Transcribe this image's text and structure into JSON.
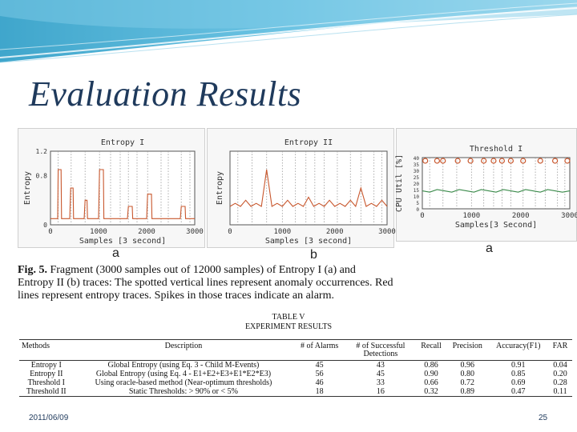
{
  "slide": {
    "title": "Evaluation Results",
    "date": "2011/06/09",
    "page_number": "25"
  },
  "colors": {
    "title": "#1f3a5c",
    "banner_dark": "#1b8bb5",
    "banner_light": "#bfe5f3",
    "entropy_trace": "#c8572d",
    "cpu_trace": "#3a8a4a",
    "alarm_marker": "#c8572d"
  },
  "figure": {
    "sub_labels": [
      "a",
      "b",
      "a"
    ],
    "caption": {
      "prefix": "Fig. 5.",
      "text": "Fragment (3000 samples out of 12000 samples) of Entropy I (a) and Entropy II (b) traces: The spotted vertical lines represent anomaly occurrences. Red lines represent entropy traces. Spikes in those traces indicate an alarm."
    }
  },
  "chart_data": [
    {
      "type": "line",
      "title": "Entropy I",
      "xlabel": "Samples [3 second]",
      "ylabel": "Entropy",
      "xlim": [
        0,
        3000
      ],
      "ylim": [
        0,
        1.2
      ],
      "x_ticks": [
        "0",
        "1000",
        "2000",
        "3000"
      ],
      "y_ticks": [
        "0",
        "0.8",
        "1.2"
      ],
      "series": [
        {
          "x": [
            0,
            150,
            160,
            220,
            230,
            400,
            420,
            470,
            480,
            700,
            720,
            760,
            770,
            1000,
            1020,
            1100,
            1110,
            1600,
            1620,
            1700,
            1710,
            2000,
            2020,
            2100,
            2110,
            2700,
            2720,
            2800,
            2810,
            3000
          ],
          "y": [
            0.1,
            0.1,
            0.9,
            0.9,
            0.1,
            0.1,
            0.6,
            0.6,
            0.1,
            0.1,
            0.4,
            0.4,
            0.1,
            0.1,
            0.9,
            0.9,
            0.1,
            0.1,
            0.3,
            0.3,
            0.1,
            0.1,
            0.5,
            0.5,
            0.1,
            0.1,
            0.3,
            0.3,
            0.1,
            0.1
          ]
        }
      ],
      "anomaly_x": [
        160,
        430,
        720,
        1020,
        1250,
        1450,
        1620,
        1800,
        2020,
        2300,
        2450,
        2720,
        2900
      ]
    },
    {
      "type": "line",
      "title": "Entropy II",
      "xlabel": "Samples [3 second]",
      "ylabel": "Entropy",
      "xlim": [
        0,
        3000
      ],
      "ylim": [
        0,
        1.2
      ],
      "x_ticks": [
        "0",
        "1000",
        "2000",
        "3000"
      ],
      "y_ticks": [],
      "series": [
        {
          "x": [
            0,
            100,
            200,
            300,
            400,
            500,
            600,
            700,
            800,
            900,
            1000,
            1100,
            1200,
            1300,
            1400,
            1500,
            1600,
            1700,
            1800,
            1900,
            2000,
            2100,
            2200,
            2300,
            2400,
            2500,
            2600,
            2700,
            2800,
            2900,
            3000
          ],
          "y": [
            0.3,
            0.35,
            0.3,
            0.4,
            0.3,
            0.35,
            0.3,
            0.9,
            0.3,
            0.35,
            0.3,
            0.4,
            0.3,
            0.35,
            0.3,
            0.45,
            0.3,
            0.35,
            0.3,
            0.4,
            0.3,
            0.35,
            0.3,
            0.4,
            0.3,
            0.6,
            0.3,
            0.35,
            0.3,
            0.4,
            0.3
          ]
        }
      ],
      "anomaly_x": [
        150,
        420,
        700,
        1000,
        1250,
        1450,
        1620,
        1800,
        2050,
        2300,
        2500,
        2750,
        2900
      ]
    },
    {
      "type": "line",
      "title": "Threshold I",
      "xlabel": "Samples[3 Second]",
      "ylabel": "CPU Util [%]",
      "xlim": [
        0,
        3000
      ],
      "ylim": [
        0,
        40
      ],
      "x_ticks": [
        "0",
        "1000",
        "2000",
        "3000"
      ],
      "y_ticks": [
        "0",
        "5",
        "10",
        "15",
        "20",
        "25",
        "30",
        "35",
        "40"
      ],
      "series": [
        {
          "x": [
            0,
            150,
            300,
            450,
            600,
            750,
            900,
            1050,
            1200,
            1350,
            1500,
            1650,
            1800,
            1950,
            2100,
            2250,
            2400,
            2550,
            2700,
            2850,
            3000
          ],
          "y": [
            14,
            13,
            15,
            14,
            13,
            15,
            14,
            13,
            15,
            14,
            13,
            15,
            14,
            13,
            15,
            14,
            13,
            15,
            14,
            13,
            14
          ]
        }
      ],
      "alarm_x": [
        60,
        300,
        420,
        720,
        980,
        1250,
        1450,
        1620,
        1800,
        2050,
        2400,
        2700,
        2950
      ],
      "anomaly_x": [
        150,
        420,
        700,
        1000,
        1250,
        1450,
        1620,
        1800,
        2050,
        2300,
        2500,
        2750,
        2900
      ]
    }
  ],
  "table": {
    "title_line1": "TABLE V",
    "title_line2": "EXPERIMENT RESULTS",
    "headers": [
      "Methods",
      "Description",
      "# of Alarms",
      "# of Successful Detections",
      "Recall",
      "Precision",
      "Accuracy(F1)",
      "FAR"
    ],
    "rows": [
      [
        "Entropy I",
        "Global Entropy (using Eq. 3 - Child M-Events)",
        "45",
        "43",
        "0.86",
        "0.96",
        "0.91",
        "0.04"
      ],
      [
        "Entropy II",
        "Global Entropy (using Eq. 4 - E1+E2+E3+E1*E2*E3)",
        "56",
        "45",
        "0.90",
        "0.80",
        "0.85",
        "0.20"
      ],
      [
        "Threshold I",
        "Using oracle-based method (Near-optimum thresholds)",
        "46",
        "33",
        "0.66",
        "0.72",
        "0.69",
        "0.28"
      ],
      [
        "Threshold II",
        "Static Thresholds: > 90% or < 5%",
        "18",
        "16",
        "0.32",
        "0.89",
        "0.47",
        "0.11"
      ]
    ]
  }
}
